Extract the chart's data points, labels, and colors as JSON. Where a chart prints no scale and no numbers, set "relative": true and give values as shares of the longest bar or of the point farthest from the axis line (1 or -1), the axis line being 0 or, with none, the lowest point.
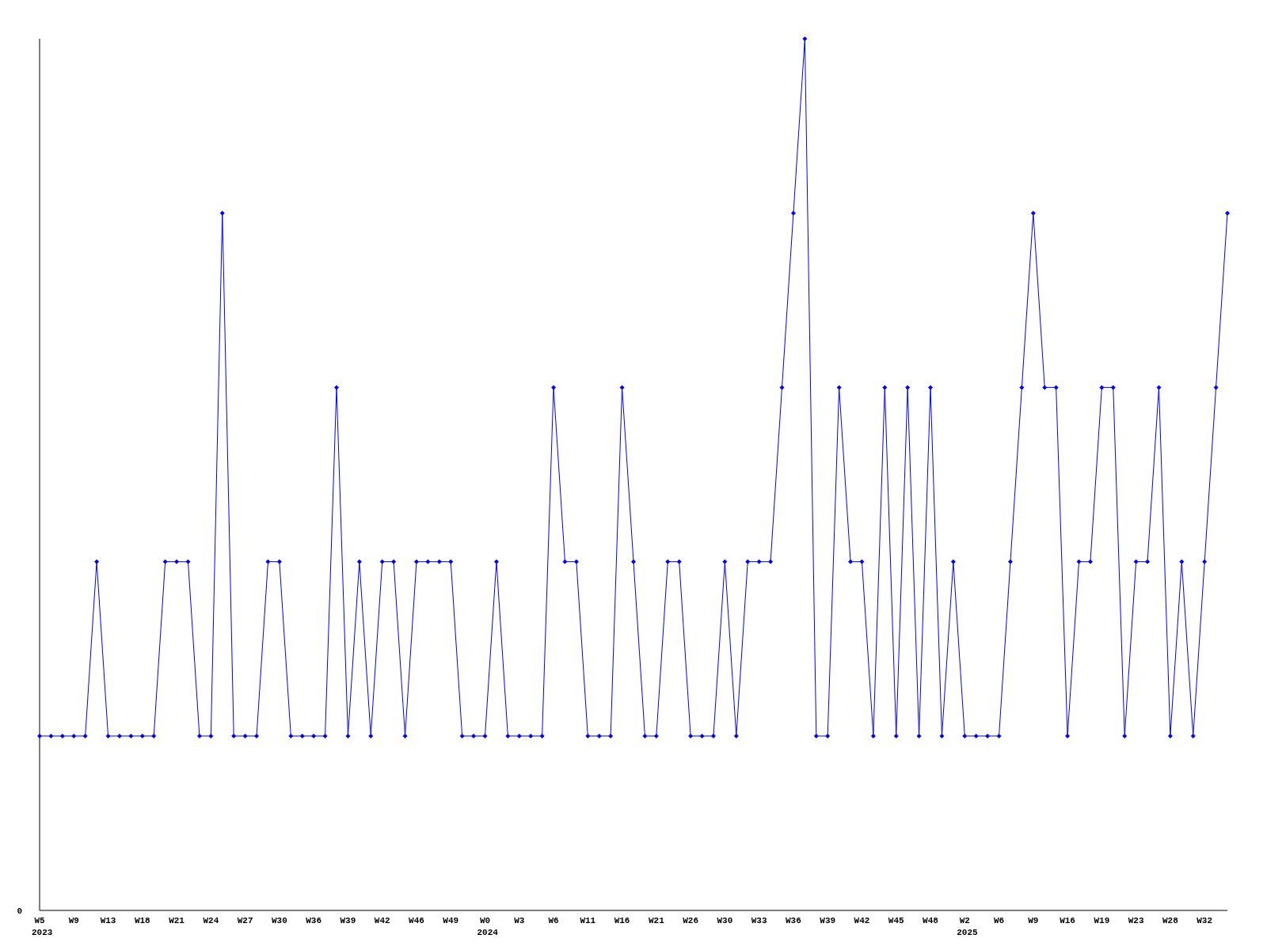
{
  "chart_data": {
    "type": "line",
    "relative": true,
    "marker": "diamond",
    "line_style": "solid",
    "categories": [
      "W5",
      null,
      null,
      "W9",
      null,
      null,
      "W13",
      null,
      null,
      "W18",
      null,
      null,
      "W21",
      null,
      null,
      "W24",
      null,
      null,
      "W27",
      null,
      null,
      "W30",
      null,
      null,
      "W36",
      null,
      null,
      "W39",
      null,
      null,
      "W42",
      null,
      null,
      "W46",
      null,
      null,
      "W49",
      null,
      null,
      "W0",
      null,
      null,
      "W3",
      null,
      null,
      "W6",
      null,
      null,
      "W11",
      null,
      null,
      "W16",
      null,
      null,
      "W21",
      null,
      null,
      "W26",
      null,
      null,
      "W30",
      null,
      null,
      "W33",
      null,
      null,
      "W36",
      null,
      null,
      "W39",
      null,
      null,
      "W42",
      null,
      null,
      "W45",
      null,
      null,
      "W48",
      null,
      null,
      "W2",
      null,
      null,
      "W6",
      null,
      null,
      "W9",
      null,
      null,
      "W16",
      null,
      null,
      "W19",
      null,
      null,
      "W23",
      null,
      null,
      "W28",
      null,
      null,
      "W32",
      null,
      null
    ],
    "series": [
      {
        "color": "#0000ff",
        "values": [
          0.2,
          0.2,
          0.2,
          0.2,
          0.2,
          0.4,
          0.2,
          0.2,
          0.2,
          0.2,
          0.2,
          0.4,
          0.4,
          0.4,
          0.2,
          0.2,
          0.8,
          0.2,
          0.2,
          0.2,
          0.4,
          0.4,
          0.2,
          0.2,
          0.2,
          0.2,
          0.6,
          0.2,
          0.4,
          0.2,
          0.4,
          0.4,
          0.2,
          0.4,
          0.4,
          0.4,
          0.4,
          0.2,
          0.2,
          0.2,
          0.4,
          0.2,
          0.2,
          0.2,
          0.2,
          0.6,
          0.4,
          0.4,
          0.2,
          0.2,
          0.2,
          0.6,
          0.4,
          0.2,
          0.2,
          0.4,
          0.4,
          0.2,
          0.2,
          0.2,
          0.4,
          0.2,
          0.4,
          0.4,
          0.4,
          0.6,
          0.8,
          1,
          0.2,
          0.2,
          0.6,
          0.4,
          0.4,
          0.2,
          0.6,
          0.2,
          0.6,
          0.2,
          0.6,
          0.2,
          0.4,
          0.2,
          0.2,
          0.2,
          0.2,
          0.4,
          0.6,
          0.8,
          0.6,
          0.6,
          0.2,
          0.4,
          0.4,
          0.6,
          0.6,
          0.2,
          0.4,
          0.4,
          0.6,
          0.2,
          0.4,
          0.2,
          0.4,
          0.6,
          0.8
        ]
      }
    ],
    "annotations": [
      "0",
      "2023",
      "2024",
      "2025"
    ]
  }
}
